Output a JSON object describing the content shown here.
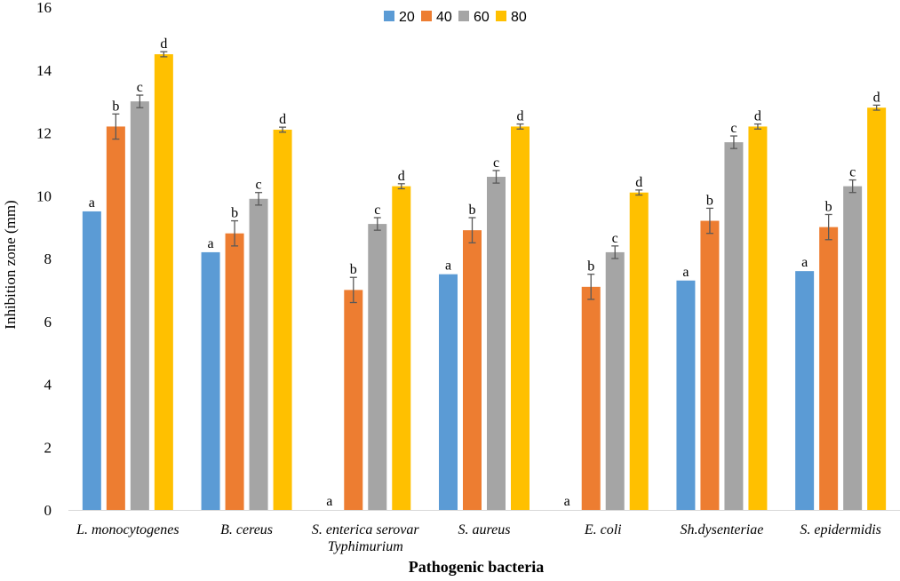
{
  "chart_data": {
    "type": "bar",
    "title": "",
    "xlabel": "Pathogenic bacteria",
    "ylabel": "Inhibition zone (mm)",
    "ylim": [
      0,
      16
    ],
    "yticks": [
      0,
      2,
      4,
      6,
      8,
      10,
      12,
      14,
      16
    ],
    "grid": false,
    "legend_position": "top-center",
    "categories": [
      [
        "L. monocytogenes"
      ],
      [
        "B. cereus"
      ],
      [
        "S. enterica serovar",
        "Typhimurium"
      ],
      [
        "S. aureus"
      ],
      [
        "E. coli"
      ],
      [
        "Sh.dysenteriae"
      ],
      [
        "S. epidermidis"
      ]
    ],
    "series": [
      {
        "name": "20",
        "color": "#5B9BD5",
        "values": [
          9.5,
          8.2,
          0,
          7.5,
          0,
          7.3,
          7.6
        ],
        "errors": [
          0,
          0,
          0,
          0,
          0,
          0,
          0
        ],
        "letters": [
          "a",
          "a",
          "a",
          "a",
          "a",
          "a",
          "a"
        ]
      },
      {
        "name": "40",
        "color": "#ED7D31",
        "values": [
          12.2,
          8.8,
          7.0,
          8.9,
          7.1,
          9.2,
          9.0
        ],
        "errors": [
          0.4,
          0.4,
          0.4,
          0.4,
          0.4,
          0.4,
          0.4
        ],
        "letters": [
          "b",
          "b",
          "b",
          "b",
          "b",
          "b",
          "b"
        ]
      },
      {
        "name": "60",
        "color": "#A5A5A5",
        "values": [
          13.0,
          9.9,
          9.1,
          10.6,
          8.2,
          11.7,
          10.3
        ],
        "errors": [
          0.2,
          0.2,
          0.2,
          0.2,
          0.2,
          0.2,
          0.2
        ],
        "letters": [
          "c",
          "c",
          "c",
          "c",
          "c",
          "c",
          "c"
        ]
      },
      {
        "name": "80",
        "color": "#FFC000",
        "values": [
          14.5,
          12.1,
          10.3,
          12.2,
          10.1,
          12.2,
          12.8
        ],
        "errors": [
          0.08,
          0.08,
          0.08,
          0.08,
          0.08,
          0.08,
          0.08
        ],
        "letters": [
          "d",
          "d",
          "d",
          "d",
          "d",
          "d",
          "d"
        ]
      }
    ]
  }
}
